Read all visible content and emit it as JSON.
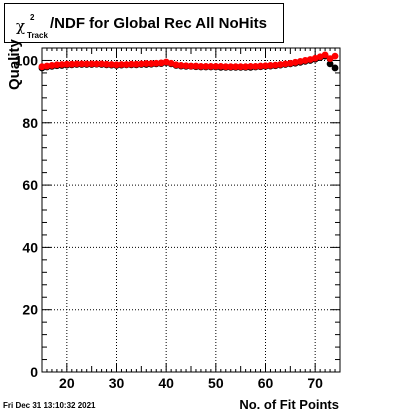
{
  "header": {
    "title_symbol": "χ",
    "title_superscript": "2",
    "title_subscript": "Track",
    "title_text": "/NDF for Global Rec All NoHits"
  },
  "footer": {
    "timestamp": "Fri Dec 31 13:10:32 2021"
  },
  "chart_data": {
    "type": "scatter",
    "title": "χ²Track/NDF for Global Rec All NoHits",
    "xlabel": "No. of Fit Points",
    "ylabel": "Quality",
    "xlim": [
      15,
      75
    ],
    "ylim": [
      0,
      104
    ],
    "x_ticks": [
      20,
      30,
      40,
      50,
      60,
      70
    ],
    "y_ticks": [
      0,
      20,
      40,
      60,
      80,
      100
    ],
    "grid": true,
    "colors": {
      "series_a": "#000000",
      "series_b": "#ff0000"
    },
    "series": [
      {
        "color": "#000000",
        "x": [
          15,
          16,
          17,
          18,
          19,
          20,
          21,
          22,
          23,
          24,
          25,
          26,
          27,
          28,
          29,
          30,
          31,
          32,
          33,
          34,
          35,
          36,
          37,
          38,
          39,
          40,
          41,
          42,
          43,
          44,
          45,
          46,
          47,
          48,
          49,
          50,
          51,
          52,
          53,
          54,
          55,
          56,
          57,
          58,
          59,
          60,
          61,
          62,
          63,
          64,
          65,
          66,
          67,
          68,
          69,
          70,
          71,
          72,
          73,
          74
        ],
        "y": [
          97.6,
          97.9,
          98.1,
          98.3,
          98.4,
          98.5,
          98.6,
          98.7,
          98.7,
          98.7,
          98.7,
          98.8,
          98.7,
          98.6,
          98.5,
          98.4,
          98.5,
          98.6,
          98.6,
          98.6,
          98.7,
          98.7,
          98.8,
          98.9,
          99.0,
          99.3,
          98.9,
          98.4,
          98.2,
          98.1,
          98.1,
          98.0,
          97.9,
          97.9,
          97.9,
          97.9,
          97.8,
          97.8,
          97.8,
          97.8,
          97.8,
          97.8,
          97.8,
          97.9,
          98.0,
          98.1,
          98.2,
          98.3,
          98.5,
          98.7,
          98.9,
          99.1,
          99.4,
          99.7,
          100.0,
          100.4,
          100.9,
          101.4,
          98.9,
          97.6
        ]
      },
      {
        "color": "#ff0000",
        "x": [
          15,
          16,
          17,
          18,
          19,
          20,
          21,
          22,
          23,
          24,
          25,
          26,
          27,
          28,
          29,
          30,
          31,
          32,
          33,
          34,
          35,
          36,
          37,
          38,
          39,
          40,
          41,
          42,
          43,
          44,
          45,
          46,
          47,
          48,
          49,
          50,
          51,
          52,
          53,
          54,
          55,
          56,
          57,
          58,
          59,
          60,
          61,
          62,
          63,
          64,
          65,
          66,
          67,
          68,
          69,
          70,
          71,
          72,
          73,
          74
        ],
        "y": [
          98.0,
          98.2,
          98.4,
          98.6,
          98.7,
          98.8,
          98.8,
          98.9,
          98.9,
          98.9,
          98.9,
          98.9,
          98.9,
          98.8,
          98.7,
          98.6,
          98.7,
          98.7,
          98.8,
          98.8,
          98.9,
          99.0,
          99.0,
          99.1,
          99.2,
          99.5,
          99.1,
          98.6,
          98.4,
          98.3,
          98.2,
          98.2,
          98.1,
          98.1,
          98.1,
          98.1,
          98.1,
          98.0,
          98.0,
          98.0,
          98.0,
          98.0,
          98.1,
          98.1,
          98.2,
          98.3,
          98.4,
          98.5,
          98.7,
          98.9,
          99.1,
          99.4,
          99.7,
          100.0,
          100.3,
          100.7,
          101.2,
          101.8,
          100.6,
          101.4
        ]
      }
    ]
  }
}
